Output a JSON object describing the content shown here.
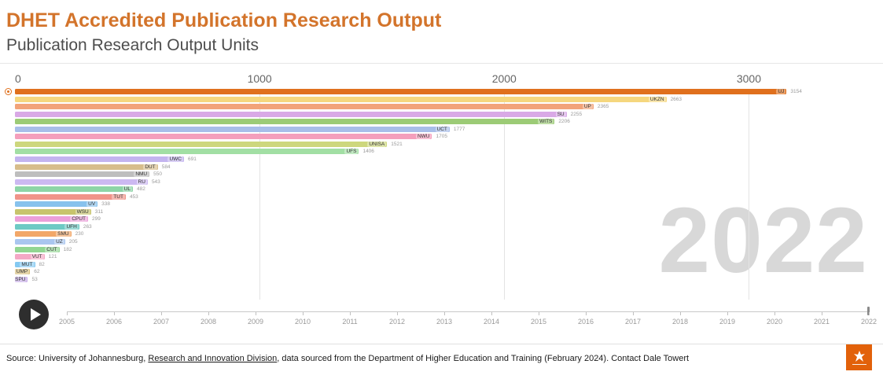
{
  "header": {
    "title": "DHET Accredited Publication Research Output",
    "subtitle": "Publication Research Output Units"
  },
  "chart_data": {
    "type": "bar",
    "orientation": "horizontal",
    "title": "DHET Accredited Publication Research Output",
    "ylabel": "Publication Research Output Units",
    "xlabel": "",
    "grid": true,
    "xlim": [
      0,
      3500
    ],
    "x_ticks": [
      "0",
      "1000",
      "2000",
      "3000"
    ],
    "year_label": "2022",
    "categories": [
      "UJ",
      "UKZN",
      "UP",
      "SU",
      "WITS",
      "UCT",
      "NWU",
      "UNISA",
      "UFS",
      "UWC",
      "DUT",
      "NMU",
      "RU",
      "UL",
      "TUT",
      "UV",
      "WSU",
      "CPUT",
      "UFH",
      "SMU",
      "UZ",
      "CUT",
      "VUT",
      "MUT",
      "UMP",
      "SPU"
    ],
    "values": [
      3154,
      2663,
      2365,
      2255,
      2206,
      1777,
      1705,
      1521,
      1406,
      691,
      584,
      550,
      543,
      482,
      453,
      338,
      311,
      299,
      263,
      230,
      205,
      182,
      121,
      82,
      62,
      53
    ],
    "colors": [
      "#E0701D",
      "#F5D77E",
      "#F2A379",
      "#D9A9E6",
      "#9CCB76",
      "#A8BEE9",
      "#F49FBC",
      "#CDD77D",
      "#A2DFA4",
      "#C3B4EF",
      "#D7BD8B",
      "#BEBEBE",
      "#CCB9F1",
      "#8DD5A7",
      "#F09389",
      "#87C2ED",
      "#C7C46C",
      "#EC9FD9",
      "#6ECAC4",
      "#F2A768",
      "#AAC6EF",
      "#92D692",
      "#F4A8C5",
      "#84C9F1",
      "#D7BF7B",
      "#C7ACE7"
    ],
    "highlight_color": "#E0701D",
    "watermark_color": "#D8D8D8"
  },
  "timeline": {
    "years": [
      "2005",
      "2006",
      "2007",
      "2008",
      "2009",
      "2010",
      "2011",
      "2012",
      "2013",
      "2014",
      "2015",
      "2016",
      "2017",
      "2018",
      "2019",
      "2020",
      "2021",
      "2022"
    ],
    "current_year": "2022"
  },
  "icons": {
    "play": "play-icon",
    "row_marker": "selected-row-marker-icon",
    "logo": "university-of-johannesburg-logo"
  },
  "footer": {
    "source_prefix": "Source: University of Johannesburg, ",
    "source_link": "Research and Innovation Division",
    "source_suffix": ", data sourced from the Department of Higher Education and Training (February 2024). Contact Dale Towert",
    "logo_color": "#E2610A"
  }
}
